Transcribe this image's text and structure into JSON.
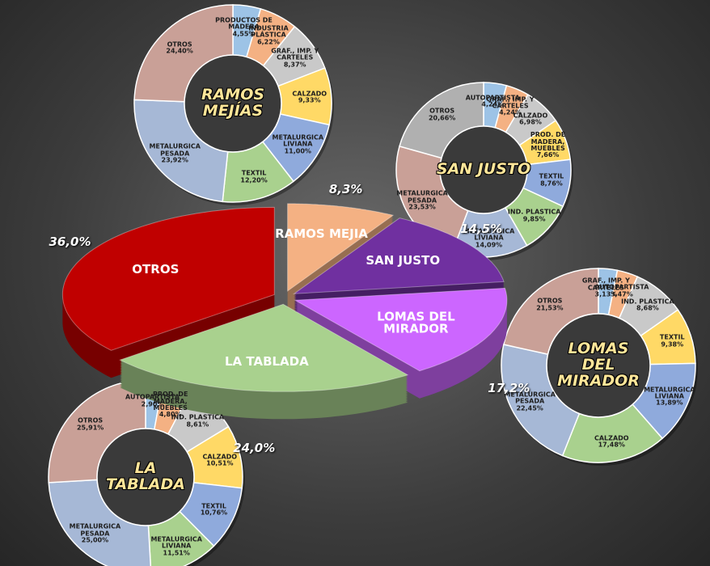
{
  "chart_data": [
    {
      "type": "pie",
      "categories": [
        "RAMOS MEJIA",
        "SAN JUSTO",
        "LOMAS DEL MIRADOR",
        "LA TABLADA",
        "OTROS"
      ],
      "values": [
        8.3,
        14.5,
        17.2,
        24.0,
        36.0
      ],
      "value_labels": [
        "8,3%",
        "14,5%",
        "17,2%",
        "24,0%",
        "36,0%"
      ],
      "colors": [
        "#f4b183",
        "#7030a0",
        "#cc66ff",
        "#a9d18e",
        "#c00000"
      ]
    },
    {
      "type": "donut",
      "title": "RAMOS MEJÍAS",
      "categories": [
        "PRODUCTOS DE MADERA",
        "INDUSTRIA PLÁSTICA",
        "GRAF., IMP. Y CARTELES",
        "CALZADO",
        "METALURGICA LIVIANA",
        "TEXTIL",
        "METALURGICA PESADA",
        "OTROS"
      ],
      "values": [
        4.55,
        6.22,
        8.37,
        9.33,
        11.0,
        12.2,
        23.92,
        24.4
      ],
      "value_labels": [
        "4,55%",
        "6,22%",
        "8,37%",
        "9,33%",
        "11,00%",
        "12,20%",
        "23,92%",
        "24,40%"
      ],
      "colors": [
        "#9dc3e6",
        "#f4b183",
        "#c9c9c9",
        "#ffd966",
        "#8faadc",
        "#a9d18e",
        "#a6b8d6",
        "#c9a097"
      ]
    },
    {
      "type": "donut",
      "title": "SAN JUSTO",
      "categories": [
        "AUTOPARTISTA",
        "GRAF., IMP. Y CARTELES",
        "CALZADO",
        "PROD. DE MADERA, MUEBLES",
        "TEXTIL",
        "IND. PLASTICA",
        "METALURGICA LIVIANA",
        "METALURGICA PESADA",
        "OTROS"
      ],
      "values": [
        4.24,
        4.24,
        6.98,
        7.66,
        8.76,
        9.85,
        14.09,
        23.53,
        20.66
      ],
      "value_labels": [
        "4,24%",
        "4,24%",
        "6,98%",
        "7,66%",
        "8,76%",
        "9,85%",
        "14,09%",
        "23,53%",
        "20,66%"
      ],
      "colors": [
        "#9dc3e6",
        "#f4b183",
        "#c9c9c9",
        "#ffd966",
        "#8faadc",
        "#a9d18e",
        "#a6b8d6",
        "#c9a097",
        "#b0b0b0"
      ]
    },
    {
      "type": "donut",
      "title": "LOMAS DEL MIRADOR",
      "categories": [
        "GRAF., IMP. Y CARTELES",
        "AUTOPARTISTA",
        "IND. PLASTICA",
        "TEXTIL",
        "METALURGICA LIVIANA",
        "CALZADO",
        "METALURGICA PESADA",
        "OTROS"
      ],
      "values": [
        3.13,
        3.47,
        8.68,
        9.38,
        13.89,
        17.48,
        22.45,
        21.53
      ],
      "value_labels": [
        "3,13%",
        "3,47%",
        "8,68%",
        "9,38%",
        "13,89%",
        "17,48%",
        "22,45%",
        "21,53%"
      ],
      "colors": [
        "#9dc3e6",
        "#f4b183",
        "#c9c9c9",
        "#ffd966",
        "#8faadc",
        "#a9d18e",
        "#a6b8d6",
        "#c9a097"
      ]
    },
    {
      "type": "donut",
      "title": "LA TABLADA",
      "categories": [
        "AUTOPARTISTA",
        "PROD. DE MADERA, MUEBLES",
        "IND. PLASTICA",
        "CALZADO",
        "TEXTIL",
        "METALURGICA LIVIANA",
        "METALURGICA PESADA",
        "OTROS"
      ],
      "values": [
        2.9,
        4.8,
        8.61,
        10.51,
        10.76,
        11.51,
        25.0,
        25.91
      ],
      "value_labels": [
        "2,90%",
        "4,80%",
        "8,61%",
        "10,51%",
        "10,76%",
        "11,51%",
        "25,00%",
        "25,91%"
      ],
      "colors": [
        "#9dc3e6",
        "#f4b183",
        "#c9c9c9",
        "#ffd966",
        "#8faadc",
        "#a9d18e",
        "#a6b8d6",
        "#c9a097"
      ]
    }
  ]
}
